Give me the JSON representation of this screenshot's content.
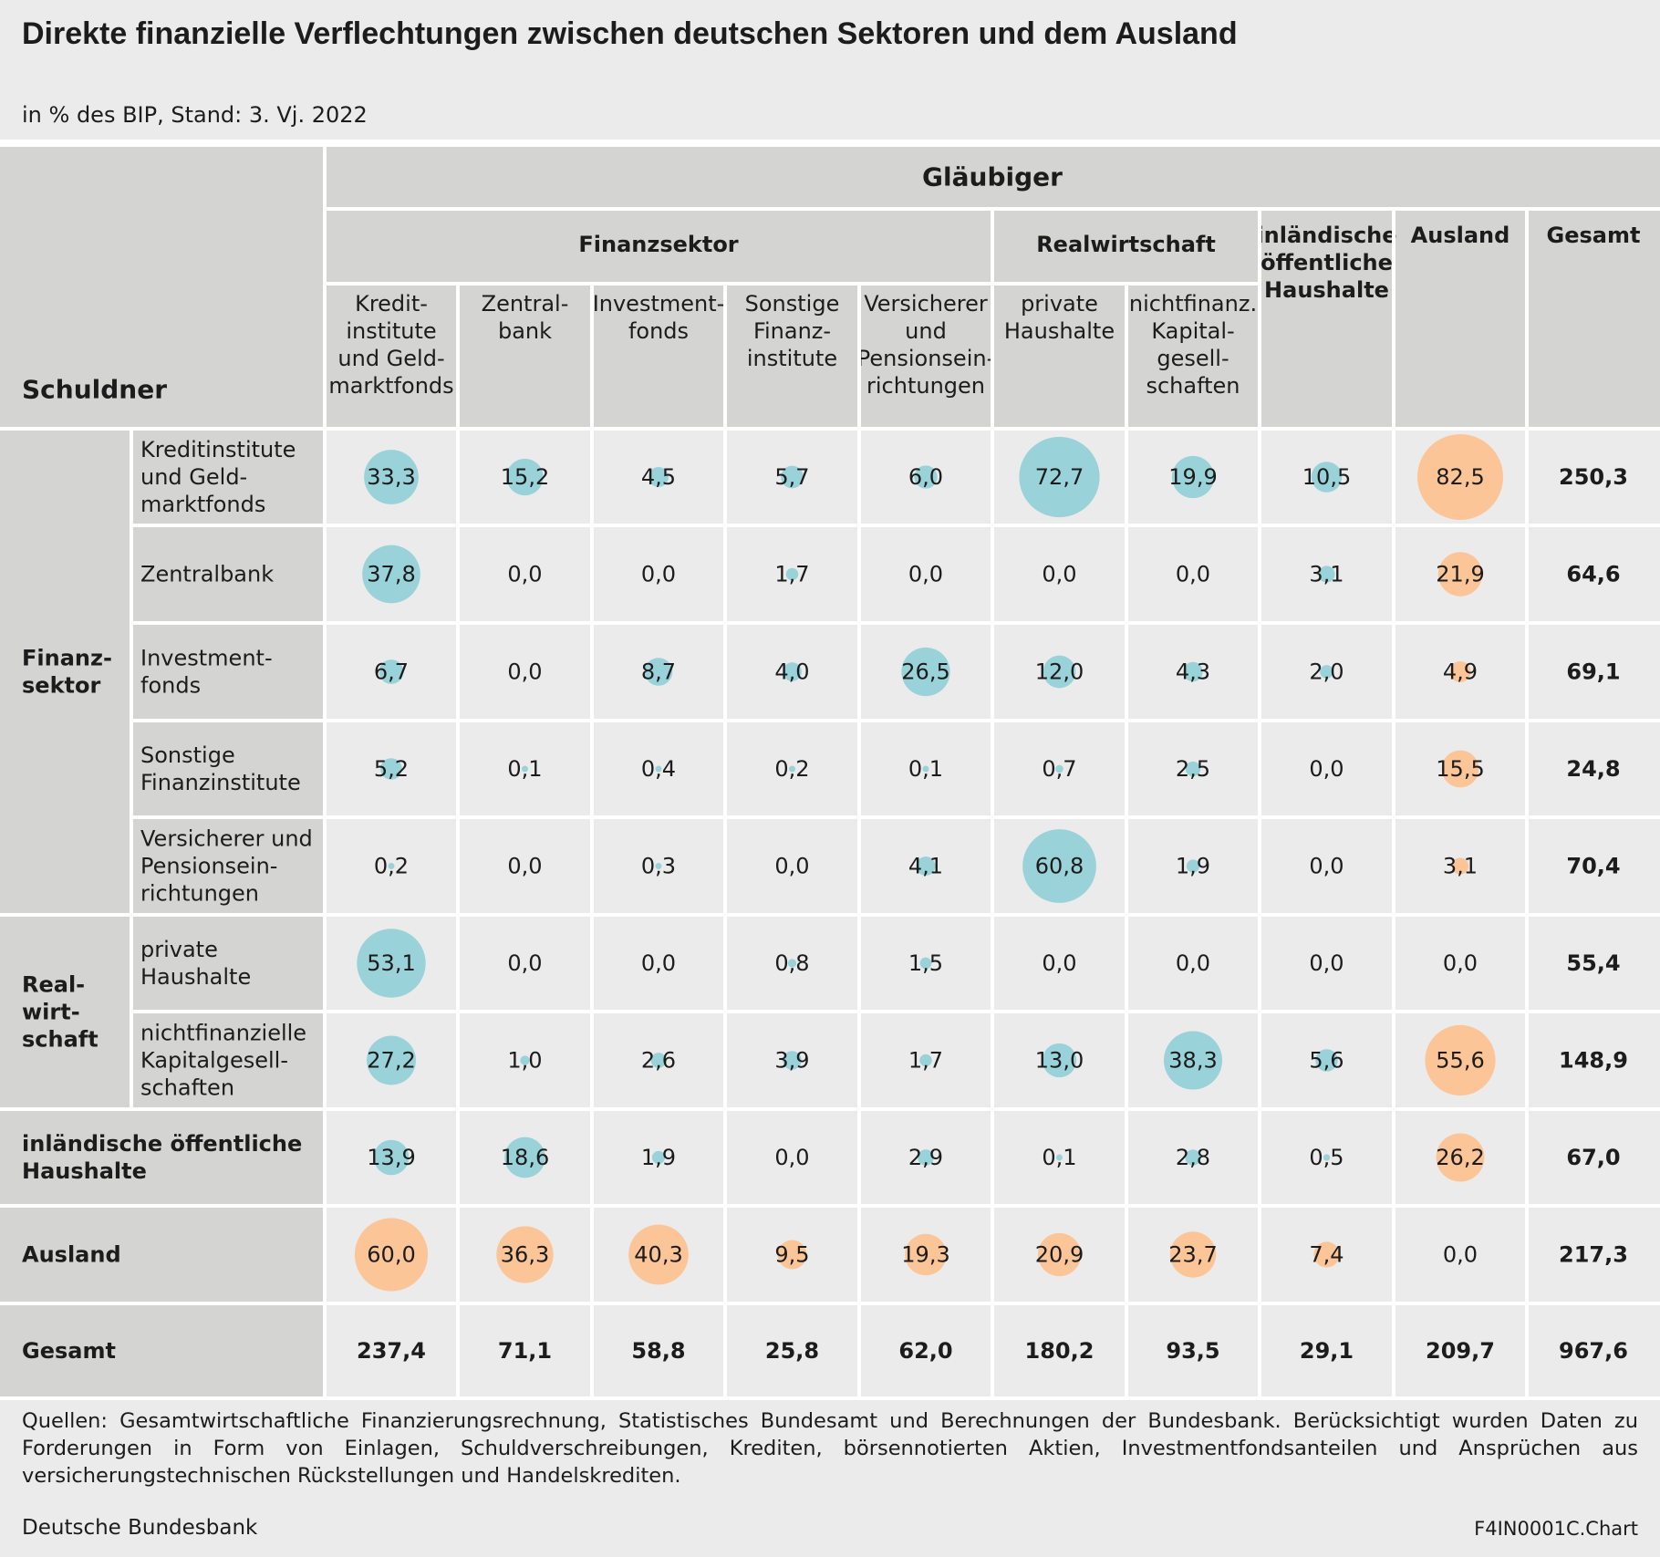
{
  "title": "Direkte finanzielle Verflechtungen zwischen deutschen Sektoren und dem Ausland",
  "subtitle": "in % des BIP, Stand: 3. Vj. 2022",
  "colors": {
    "bubble_domestic": "#99d3d9",
    "bubble_foreign": "#fcc597",
    "header_bg": "#d4d4d2",
    "body_bg": "#ebebeb",
    "grid_line": "#ffffff"
  },
  "chart_data": {
    "type": "table",
    "column_header_top": "Gläubiger",
    "row_header_title": "Schuldner",
    "column_groups": [
      "Finanzsektor",
      "Realwirtschaft",
      "inländische öffentliche Haushalte",
      "Ausland",
      "Gesamt"
    ],
    "columns": [
      "Kredit- institute und Geld- marktfonds",
      "Zentral- bank",
      "Investment- fonds",
      "Sonstige Finanz- institute",
      "Versicherer und Pensionsein- richtungen",
      "private Haushalte",
      "nichtfinanz. Kapital- gesell- schaften"
    ],
    "row_groups": [
      "Finanz- sektor",
      "Real- wirt- schaft"
    ],
    "rows": [
      {
        "label": "Kreditinstitute und Geld- marktfonds",
        "values": [
          "33,3",
          "15,2",
          "4,5",
          "5,7",
          "6,0",
          "72,7",
          "19,9",
          "10,5",
          "82,5"
        ],
        "total": "250,3"
      },
      {
        "label": "Zentralbank",
        "values": [
          "37,8",
          "0,0",
          "0,0",
          "1,7",
          "0,0",
          "0,0",
          "0,0",
          "3,1",
          "21,9"
        ],
        "total": "64,6"
      },
      {
        "label": "Investment- fonds",
        "values": [
          "6,7",
          "0,0",
          "8,7",
          "4,0",
          "26,5",
          "12,0",
          "4,3",
          "2,0",
          "4,9"
        ],
        "total": "69,1"
      },
      {
        "label": "Sonstige Finanzinstitute",
        "values": [
          "5,2",
          "0,1",
          "0,4",
          "0,2",
          "0,1",
          "0,7",
          "2,5",
          "0,0",
          "15,5"
        ],
        "total": "24,8"
      },
      {
        "label": "Versicherer und Pensionsein- richtungen",
        "values": [
          "0,2",
          "0,0",
          "0,3",
          "0,0",
          "4,1",
          "60,8",
          "1,9",
          "0,0",
          "3,1"
        ],
        "total": "70,4"
      },
      {
        "label": "private Haushalte",
        "values": [
          "53,1",
          "0,0",
          "0,0",
          "0,8",
          "1,5",
          "0,0",
          "0,0",
          "0,0",
          "0,0"
        ],
        "total": "55,4"
      },
      {
        "label": "nichtfinanzielle Kapitalgesell- schaften",
        "values": [
          "27,2",
          "1,0",
          "2,6",
          "3,9",
          "1,7",
          "13,0",
          "38,3",
          "5,6",
          "55,6"
        ],
        "total": "148,9"
      },
      {
        "label": "inländische öffentliche Haushalte",
        "values": [
          "13,9",
          "18,6",
          "1,9",
          "0,0",
          "2,9",
          "0,1",
          "2,8",
          "0,5",
          "26,2"
        ],
        "total": "67,0"
      },
      {
        "label": "Ausland",
        "values": [
          "60,0",
          "36,3",
          "40,3",
          "9,5",
          "19,3",
          "20,9",
          "23,7",
          "7,4",
          "0,0"
        ],
        "total": "217,3"
      },
      {
        "label": "Gesamt",
        "values": [
          "237,4",
          "71,1",
          "58,8",
          "25,8",
          "62,0",
          "180,2",
          "93,5",
          "29,1",
          "209,7"
        ],
        "total": "967,6"
      }
    ]
  },
  "footer": {
    "source": "Quellen: Gesamtwirtschaftliche Finanzierungsrechnung, Statistisches Bundesamt und Berechnungen der Bundesbank. Berücksichtigt wurden Daten zu Forderungen in Form von Einlagen, Schuldverschreibungen, Krediten, börsennotierten Aktien, Investmentfondsanteilen und Ansprüchen aus versicherungstechnischen Rückstellungen und Handelskrediten.",
    "organization": "Deutsche Bundesbank",
    "chart_id": "F4IN0001C.Chart"
  }
}
